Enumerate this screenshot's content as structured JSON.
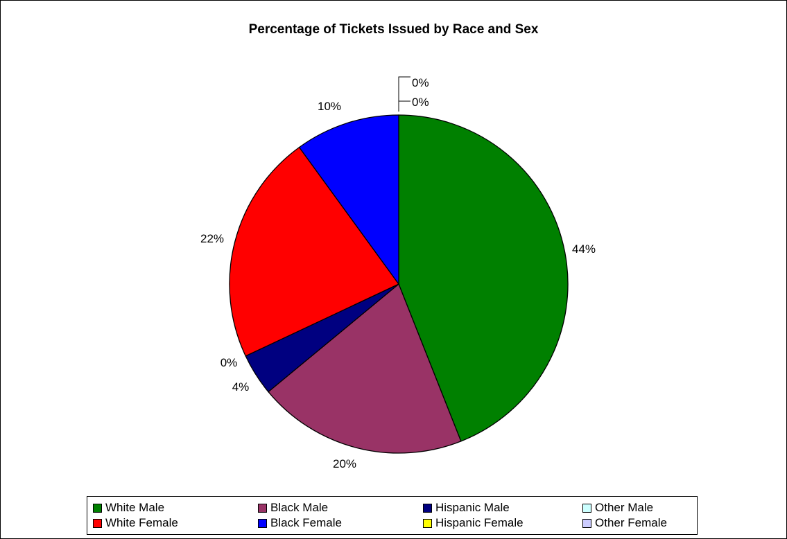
{
  "chart_data": {
    "type": "pie",
    "title": "Percentage of Tickets Issued by Race and Sex",
    "slices": [
      {
        "name": "White Male",
        "value": 44,
        "label": "44%",
        "color": "#008000"
      },
      {
        "name": "Black Male",
        "value": 20,
        "label": "20%",
        "color": "#993366"
      },
      {
        "name": "Hispanic Male",
        "value": 4,
        "label": "4%",
        "color": "#000080"
      },
      {
        "name": "Other Male",
        "value": 0,
        "label": "0%",
        "color": "#CCFFFF"
      },
      {
        "name": "White Female",
        "value": 22,
        "label": "22%",
        "color": "#FF0000"
      },
      {
        "name": "Black Female",
        "value": 10,
        "label": "10%",
        "color": "#0000FF"
      },
      {
        "name": "Hispanic Female",
        "value": 0,
        "label": "0%",
        "color": "#FFFF00"
      },
      {
        "name": "Other Female",
        "value": 0,
        "label": "0%",
        "color": "#CCCCFF"
      }
    ],
    "legend": [
      [
        "White Male",
        "Black Male",
        "Hispanic Male",
        "Other Male"
      ],
      [
        "White Female",
        "Black Female",
        "Hispanic Female",
        "Other Female"
      ]
    ],
    "legend_position": "bottom"
  }
}
